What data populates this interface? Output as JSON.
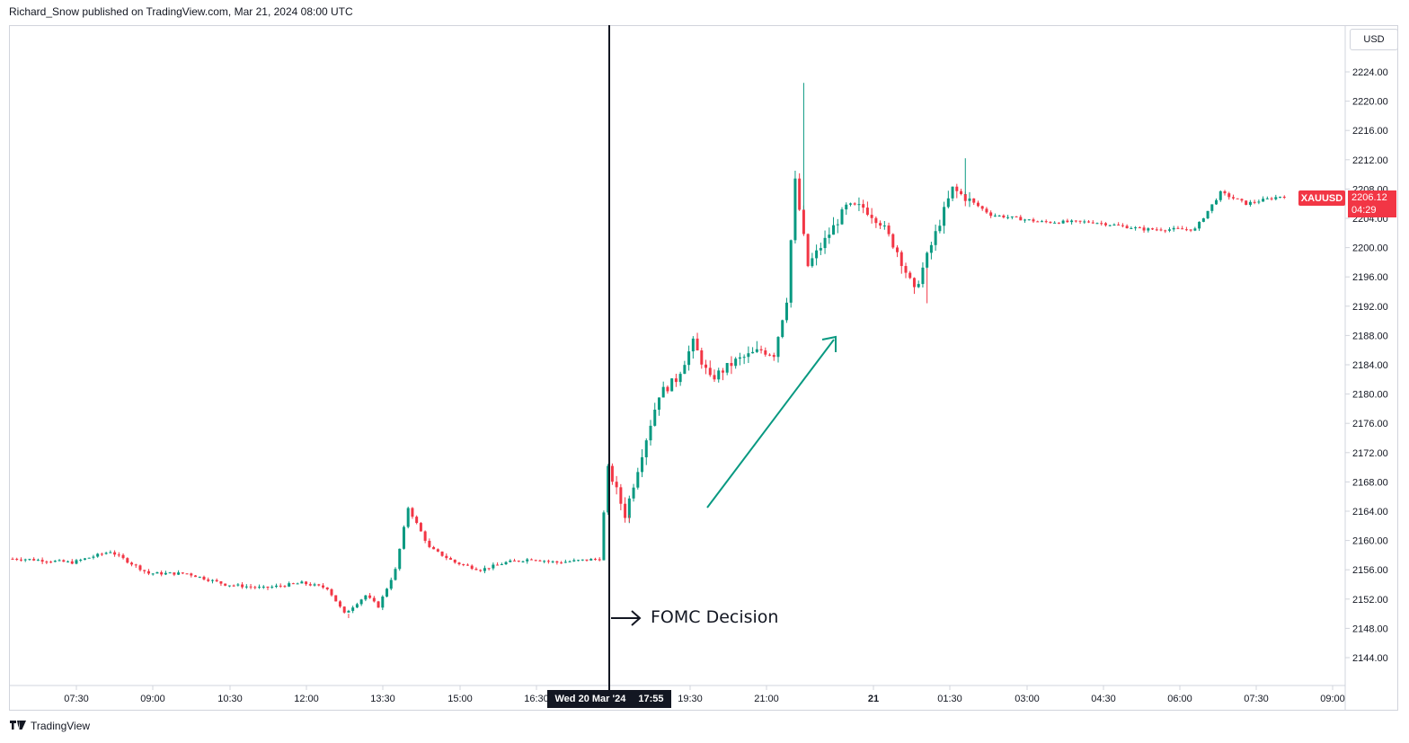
{
  "header": {
    "publisher_text": "Richard_Snow published on TradingView.com, Mar 21, 2024 08:00 UTC"
  },
  "toolbar": {
    "currency": "USD"
  },
  "footer": {
    "brand": "TradingView"
  },
  "symbol": {
    "name": "XAUUSD",
    "last_price": "2206.12",
    "countdown": "04:29"
  },
  "crosshair": {
    "date_label": "Wed 20 Mar '24",
    "time_label": "17:55"
  },
  "annotation": {
    "text": "FOMC Decision"
  },
  "colors": {
    "up": "#089981",
    "down": "#f23645",
    "arrow": "#089981",
    "axis_text": "#131722",
    "border": "#d1d4dc"
  },
  "icons": [
    "tradingview-logo-icon",
    "right-arrow-icon",
    "trend-arrow-icon"
  ],
  "chart_data": {
    "type": "candlestick",
    "title": "",
    "y_axis": {
      "ticks": [
        "2144.00",
        "2148.00",
        "2152.00",
        "2156.00",
        "2160.00",
        "2164.00",
        "2168.00",
        "2172.00",
        "2176.00",
        "2180.00",
        "2184.00",
        "2188.00",
        "2192.00",
        "2196.00",
        "2200.00",
        "2204.00",
        "2208.00",
        "2212.00",
        "2216.00",
        "2220.00",
        "2224.00"
      ],
      "range": [
        2140.0,
        2227.0
      ]
    },
    "x_axis": {
      "ticks": [
        "07:30",
        "09:00",
        "10:30",
        "12:00",
        "13:30",
        "15:00",
        "16:30",
        "19:30",
        "21:00",
        "21",
        "01:30",
        "03:00",
        "04:30",
        "06:00",
        "07:30",
        "09:00"
      ]
    },
    "grid": false,
    "price_path": [
      [
        "06:30",
        2157.5
      ],
      [
        "07:30",
        2157.0
      ],
      [
        "08:15",
        2158.5
      ],
      [
        "09:00",
        2155.5
      ],
      [
        "09:45",
        2155.5
      ],
      [
        "10:30",
        2154.0
      ],
      [
        "11:15",
        2153.5
      ],
      [
        "12:00",
        2154.2
      ],
      [
        "12:30",
        2153.5
      ],
      [
        "12:50",
        2150.0
      ],
      [
        "13:15",
        2152.5
      ],
      [
        "13:30",
        2151.0
      ],
      [
        "13:50",
        2156.0
      ],
      [
        "14:05",
        2164.5
      ],
      [
        "14:30",
        2159.0
      ],
      [
        "15:00",
        2157.0
      ],
      [
        "15:30",
        2156.0
      ],
      [
        "16:00",
        2157.0
      ],
      [
        "16:30",
        2157.5
      ],
      [
        "17:00",
        2157.0
      ],
      [
        "17:50",
        2157.5
      ],
      [
        "18:00",
        2170.0
      ],
      [
        "18:20",
        2163.5
      ],
      [
        "18:40",
        2172.0
      ],
      [
        "19:00",
        2180.0
      ],
      [
        "19:20",
        2182.0
      ],
      [
        "19:40",
        2187.0
      ],
      [
        "20:00",
        2182.0
      ],
      [
        "20:30",
        2184.5
      ],
      [
        "21:00",
        2186.0
      ],
      [
        "21:15",
        2185.5
      ],
      [
        "21:30",
        2193.0
      ],
      [
        "21:40",
        2209.0
      ],
      [
        "21:55",
        2197.5
      ],
      [
        "22:15",
        2201.0
      ],
      [
        "22:40",
        2205.5
      ],
      [
        "23:00",
        2205.5
      ],
      [
        "23:20",
        2203.5
      ],
      [
        "23:40",
        2199.5
      ],
      [
        "00:00",
        2194.0
      ],
      [
        "00:30",
        2203.5
      ],
      [
        "00:45",
        2208.0
      ],
      [
        "01:30",
        2204.5
      ],
      [
        "02:30",
        2203.5
      ],
      [
        "03:30",
        2203.5
      ],
      [
        "04:30",
        2202.5
      ],
      [
        "05:30",
        2202.5
      ],
      [
        "06:00",
        2207.5
      ],
      [
        "06:30",
        2206.0
      ],
      [
        "07:30",
        2207.5
      ],
      [
        "08:00",
        2206.1
      ]
    ],
    "notable_highs": [
      [
        "21:45",
        2222.5
      ],
      [
        "00:55",
        2212.2
      ]
    ],
    "notable_lows": [
      [
        "18:20",
        2162.5
      ],
      [
        "00:10",
        2192.4
      ],
      [
        "12:50",
        2149.4
      ]
    ]
  }
}
